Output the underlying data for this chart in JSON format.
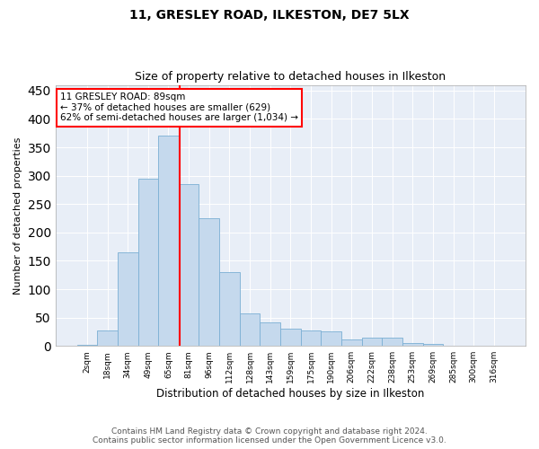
{
  "title1": "11, GRESLEY ROAD, ILKESTON, DE7 5LX",
  "title2": "Size of property relative to detached houses in Ilkeston",
  "xlabel": "Distribution of detached houses by size in Ilkeston",
  "ylabel": "Number of detached properties",
  "footer1": "Contains HM Land Registry data © Crown copyright and database right 2024.",
  "footer2": "Contains public sector information licensed under the Open Government Licence v3.0.",
  "annotation_title": "11 GRESLEY ROAD: 89sqm",
  "annotation_line2": "← 37% of detached houses are smaller (629)",
  "annotation_line3": "62% of semi-detached houses are larger (1,034) →",
  "bar_color": "#c5d9ed",
  "bar_edge_color": "#7bafd4",
  "vline_color": "red",
  "categories": [
    "2sqm",
    "18sqm",
    "34sqm",
    "49sqm",
    "65sqm",
    "81sqm",
    "96sqm",
    "112sqm",
    "128sqm",
    "143sqm",
    "159sqm",
    "175sqm",
    "190sqm",
    "206sqm",
    "222sqm",
    "238sqm",
    "253sqm",
    "269sqm",
    "285sqm",
    "300sqm",
    "316sqm"
  ],
  "values": [
    2,
    28,
    165,
    295,
    370,
    285,
    225,
    130,
    58,
    42,
    30,
    28,
    25,
    12,
    14,
    14,
    5,
    3,
    1,
    0,
    0
  ],
  "ylim": [
    0,
    460
  ],
  "yticks": [
    0,
    50,
    100,
    150,
    200,
    250,
    300,
    350,
    400,
    450
  ],
  "vline_position": 4.55,
  "plot_bg_color": "#e8eef7",
  "grid_color": "#ffffff",
  "annotation_fontsize": 7.5,
  "title1_fontsize": 10,
  "title2_fontsize": 9,
  "ylabel_fontsize": 8,
  "xlabel_fontsize": 8.5,
  "tick_fontsize": 6.5,
  "footer_fontsize": 6.5
}
